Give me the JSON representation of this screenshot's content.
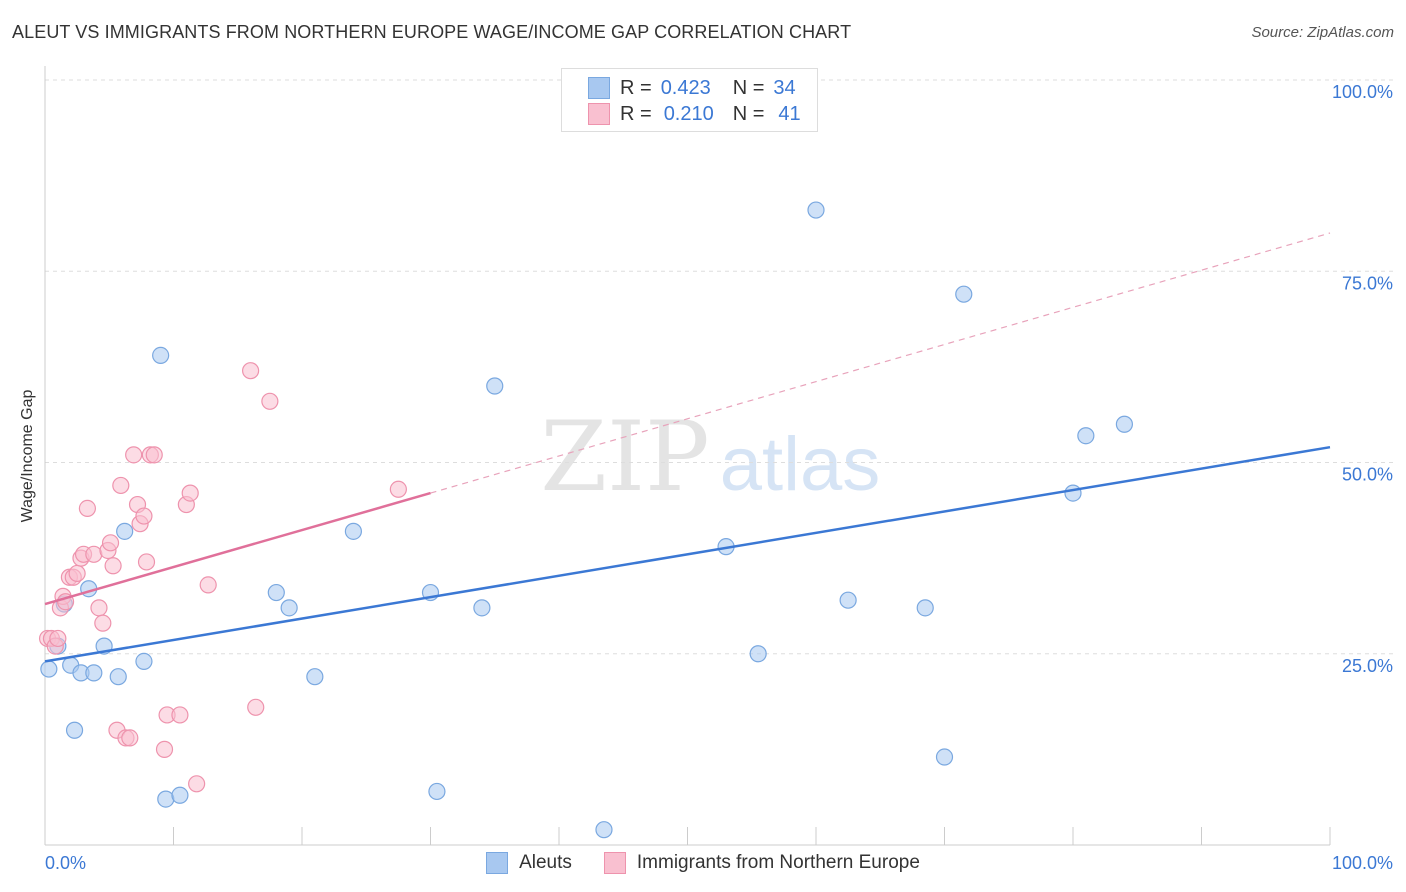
{
  "title": "ALEUT VS IMMIGRANTS FROM NORTHERN EUROPE WAGE/INCOME GAP CORRELATION CHART",
  "source": "Source: ZipAtlas.com",
  "watermark": {
    "zip": "ZIP",
    "atlas": "atlas"
  },
  "legend": {
    "series": [
      {
        "r_label": "R =",
        "r": "0.423",
        "n_label": "N =",
        "n": "34",
        "color": "#a8c8f0",
        "border": "#7aa8e0"
      },
      {
        "r_label": "R =",
        "r": "0.210",
        "n_label": "N =",
        "n": "41",
        "color": "#f9c0d0",
        "border": "#ee93ad"
      }
    ]
  },
  "colors": {
    "blue_line": "#3b78d4",
    "pink_line": "#e0709a",
    "axis_text": "#3b78d4"
  },
  "chart_data": {
    "type": "scatter",
    "title": "ALEUT VS IMMIGRANTS FROM NORTHERN EUROPE WAGE/INCOME GAP CORRELATION CHART",
    "xlabel": "",
    "ylabel": "Wage/Income Gap",
    "xlim": [
      0,
      100
    ],
    "ylim": [
      0,
      100
    ],
    "x_tick_labels": [
      "0.0%",
      "100.0%"
    ],
    "y_ticks": [
      25,
      50,
      75,
      100
    ],
    "y_tick_labels": [
      "25.0%",
      "50.0%",
      "75.0%",
      "100.0%"
    ],
    "grid": true,
    "legend_position": "top-center",
    "series": [
      {
        "name": "Aleuts",
        "color": "#a8c8f0",
        "points": [
          [
            0.3,
            23
          ],
          [
            1.0,
            26
          ],
          [
            1.5,
            31.5
          ],
          [
            2.0,
            23.5
          ],
          [
            2.3,
            15
          ],
          [
            2.8,
            22.5
          ],
          [
            3.4,
            33.5
          ],
          [
            3.8,
            22.5
          ],
          [
            4.6,
            26
          ],
          [
            5.7,
            22
          ],
          [
            6.2,
            41
          ],
          [
            7.7,
            24
          ],
          [
            9.0,
            64
          ],
          [
            9.4,
            6
          ],
          [
            10.5,
            6.5
          ],
          [
            18.0,
            33
          ],
          [
            19.0,
            31
          ],
          [
            21.0,
            22
          ],
          [
            24.0,
            41
          ],
          [
            30.0,
            33
          ],
          [
            30.5,
            7
          ],
          [
            34.0,
            31
          ],
          [
            35.0,
            60
          ],
          [
            43.5,
            2
          ],
          [
            53.0,
            39
          ],
          [
            55.5,
            25
          ],
          [
            60.0,
            83
          ],
          [
            62.5,
            32
          ],
          [
            68.5,
            31
          ],
          [
            70.0,
            11.5
          ],
          [
            71.5,
            72
          ],
          [
            80.0,
            46
          ],
          [
            81.0,
            53.5
          ],
          [
            84.0,
            55
          ]
        ]
      },
      {
        "name": "Immigrants from Northern Europe",
        "color": "#f9c0d0",
        "points": [
          [
            0.2,
            27
          ],
          [
            0.5,
            27
          ],
          [
            0.8,
            26
          ],
          [
            1.0,
            27
          ],
          [
            1.2,
            31
          ],
          [
            1.4,
            32.5
          ],
          [
            1.6,
            31.8
          ],
          [
            1.9,
            35
          ],
          [
            2.2,
            35
          ],
          [
            2.5,
            35.5
          ],
          [
            2.8,
            37.5
          ],
          [
            3.0,
            38
          ],
          [
            3.3,
            44
          ],
          [
            3.8,
            38
          ],
          [
            4.2,
            31
          ],
          [
            4.5,
            29
          ],
          [
            4.9,
            38.5
          ],
          [
            5.1,
            39.5
          ],
          [
            5.3,
            36.5
          ],
          [
            5.6,
            15
          ],
          [
            5.9,
            47
          ],
          [
            6.3,
            14
          ],
          [
            6.6,
            14
          ],
          [
            6.9,
            51
          ],
          [
            7.2,
            44.5
          ],
          [
            7.4,
            42
          ],
          [
            7.7,
            43
          ],
          [
            7.9,
            37
          ],
          [
            8.2,
            51
          ],
          [
            8.5,
            51
          ],
          [
            9.3,
            12.5
          ],
          [
            9.5,
            17
          ],
          [
            10.5,
            17
          ],
          [
            11.0,
            44.5
          ],
          [
            11.3,
            46
          ],
          [
            11.8,
            8
          ],
          [
            12.7,
            34
          ],
          [
            16.0,
            62
          ],
          [
            16.4,
            18
          ],
          [
            17.5,
            58
          ],
          [
            27.5,
            46.5
          ]
        ]
      }
    ],
    "trendlines": [
      {
        "series": "Aleuts",
        "x": [
          0,
          100
        ],
        "y": [
          24,
          52
        ]
      },
      {
        "series": "Immigrants from Northern Europe",
        "x": [
          0,
          30
        ],
        "y": [
          31.5,
          46
        ],
        "dashed_extension_to": [
          100,
          80
        ]
      }
    ]
  },
  "bottom_legend": {
    "items": [
      "Aleuts",
      "Immigrants from Northern Europe"
    ]
  }
}
